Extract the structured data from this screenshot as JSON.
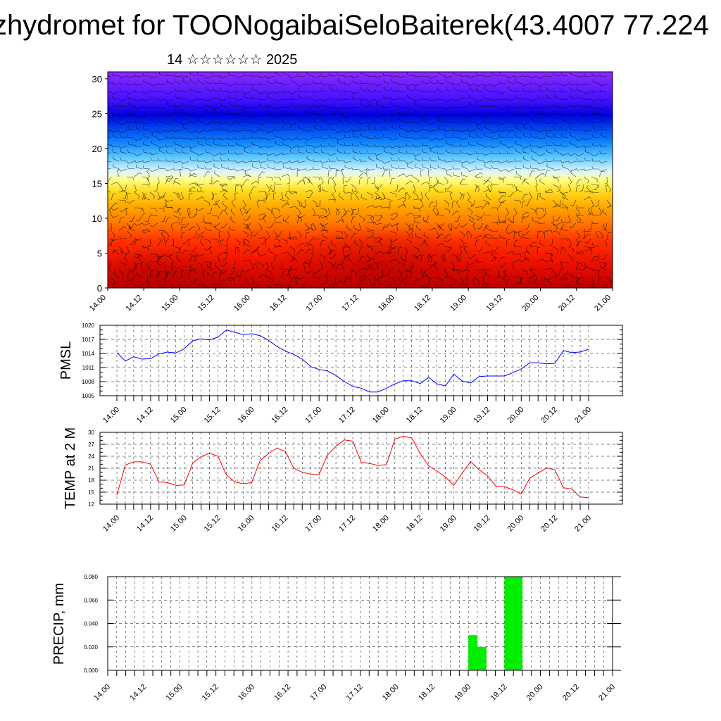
{
  "header": {
    "title": "zhydromet for TOONogaibaiSeloBaiterek(43.4007 77.224",
    "subtitle": "14 ☆☆☆☆☆☆ 2025"
  },
  "colors": {
    "pmsl_line": "#0000ff",
    "temp_line": "#ff0000",
    "precip_bar": "#00ee00"
  },
  "chart_data": [
    {
      "type": "heatmap",
      "title": "",
      "xlabel": "",
      "ylabel": "",
      "x_ticks": [
        "14.00",
        "14.12",
        "15.00",
        "15.12",
        "16.00",
        "16.12",
        "17.00",
        "17.12",
        "18.00",
        "18.12",
        "19.00",
        "19.12",
        "20.00",
        "20.12",
        "21.00"
      ],
      "y_ticks": [
        "0",
        "5",
        "10",
        "15",
        "20",
        "25",
        "30"
      ],
      "ylim": [
        0,
        31
      ],
      "overlay": "wind barbs",
      "colormap": [
        "#cc0000",
        "#ff2200",
        "#ff6600",
        "#ffaa00",
        "#ffdd00",
        "#ffff66",
        "#e8ffff",
        "#88ddff",
        "#22aaff",
        "#0066ff",
        "#0000ee",
        "#3300ff",
        "#7a1cff",
        "#8a2cff"
      ]
    },
    {
      "type": "line",
      "ylabel": "PMSL",
      "ylim": [
        1005,
        1020
      ],
      "y_ticks": [
        "1005",
        "1008",
        "1011",
        "1014",
        "1017",
        "1020"
      ],
      "x_ticks": [
        "14.00",
        "14.12",
        "15.00",
        "15.12",
        "16.00",
        "16.12",
        "17.00",
        "17.12",
        "18.00",
        "18.12",
        "19.00",
        "19.12",
        "20.00",
        "20.12",
        "21.00"
      ],
      "x_hours": [
        0,
        3,
        6,
        9,
        12,
        15,
        18,
        21,
        24,
        27,
        30,
        33,
        36,
        39,
        42,
        45,
        48,
        51,
        54,
        57,
        60,
        63,
        66,
        69,
        72,
        75,
        78,
        81,
        84,
        87,
        90,
        93,
        96,
        99,
        102,
        105,
        108,
        111,
        114,
        117,
        120,
        123,
        126,
        129,
        132,
        135,
        138,
        141,
        144,
        147,
        150,
        153,
        156,
        159,
        162,
        165,
        168
      ],
      "series": [
        {
          "values": [
            1014.2,
            1012.4,
            1013.3,
            1012.8,
            1012.9,
            1013.9,
            1014.3,
            1014.1,
            1015.0,
            1016.7,
            1017.1,
            1016.9,
            1017.5,
            1019.0,
            1018.5,
            1018.0,
            1018.2,
            1017.8,
            1016.8,
            1015.5,
            1014.5,
            1013.8,
            1012.8,
            1011.2,
            1010.6,
            1010.3,
            1009.3,
            1008.0,
            1007.0,
            1006.6,
            1005.8,
            1005.8,
            1006.6,
            1007.5,
            1008.2,
            1008.2,
            1007.6,
            1008.9,
            1007.5,
            1007.1,
            1009.6,
            1008.1,
            1007.7,
            1009.1,
            1009.2,
            1009.2,
            1009.2,
            1009.9,
            1010.7,
            1012.0,
            1012.0,
            1011.8,
            1011.9,
            1014.6,
            1014.2,
            1014.3,
            1014.9
          ]
        }
      ]
    },
    {
      "type": "line",
      "ylabel": "TEMP at 2 M",
      "ylim": [
        12,
        30
      ],
      "y_ticks": [
        "12",
        "15",
        "18",
        "21",
        "24",
        "27",
        "30"
      ],
      "x_ticks": [
        "14.00",
        "14.12",
        "15.00",
        "15.12",
        "16.00",
        "16.12",
        "17.00",
        "17.12",
        "18.00",
        "18.12",
        "19.00",
        "19.12",
        "20.00",
        "20.12",
        "21.00"
      ],
      "x_hours": [
        0,
        3,
        6,
        9,
        12,
        15,
        18,
        21,
        24,
        27,
        30,
        33,
        36,
        39,
        42,
        45,
        48,
        51,
        54,
        57,
        60,
        63,
        66,
        69,
        72,
        75,
        78,
        81,
        84,
        87,
        90,
        93,
        96,
        99,
        102,
        105,
        108,
        111,
        114,
        117,
        120,
        123,
        126,
        129,
        132,
        135,
        138,
        141,
        144,
        147,
        150,
        153,
        156,
        159,
        162,
        165,
        168
      ],
      "series": [
        {
          "values": [
            14.3,
            21.8,
            22.6,
            22.6,
            22.0,
            17.6,
            17.4,
            16.7,
            16.8,
            22.3,
            23.9,
            24.8,
            24.0,
            19.3,
            17.6,
            17.1,
            17.4,
            22.9,
            24.7,
            26.0,
            25.2,
            21.0,
            20.0,
            19.5,
            19.4,
            24.3,
            26.5,
            28.1,
            27.8,
            22.5,
            22.2,
            21.7,
            21.9,
            28.3,
            29.0,
            28.6,
            24.7,
            21.6,
            20.3,
            18.8,
            16.7,
            19.8,
            22.7,
            20.6,
            19.1,
            16.5,
            16.4,
            15.6,
            14.6,
            18.5,
            19.8,
            21.1,
            20.6,
            16.1,
            15.8,
            13.8,
            13.6
          ]
        }
      ]
    },
    {
      "type": "bar",
      "ylabel": "PRECIP, mm",
      "ylim": [
        0,
        0.08
      ],
      "y_ticks": [
        "0.000",
        "0.020",
        "0.040",
        "0.060",
        "0.080"
      ],
      "x_ticks": [
        "14.00",
        "14.12",
        "15.00",
        "15.12",
        "16.00",
        "16.12",
        "17.00",
        "17.12",
        "18.00",
        "18.12",
        "19.00",
        "19.12",
        "20.00",
        "20.12",
        "21.00"
      ],
      "bars": [
        {
          "hour_start": 120,
          "hour_end": 123,
          "value": 0.03
        },
        {
          "hour_start": 123,
          "hour_end": 126,
          "value": 0.02
        },
        {
          "hour_start": 132,
          "hour_end": 138,
          "value": 0.08
        }
      ]
    }
  ]
}
